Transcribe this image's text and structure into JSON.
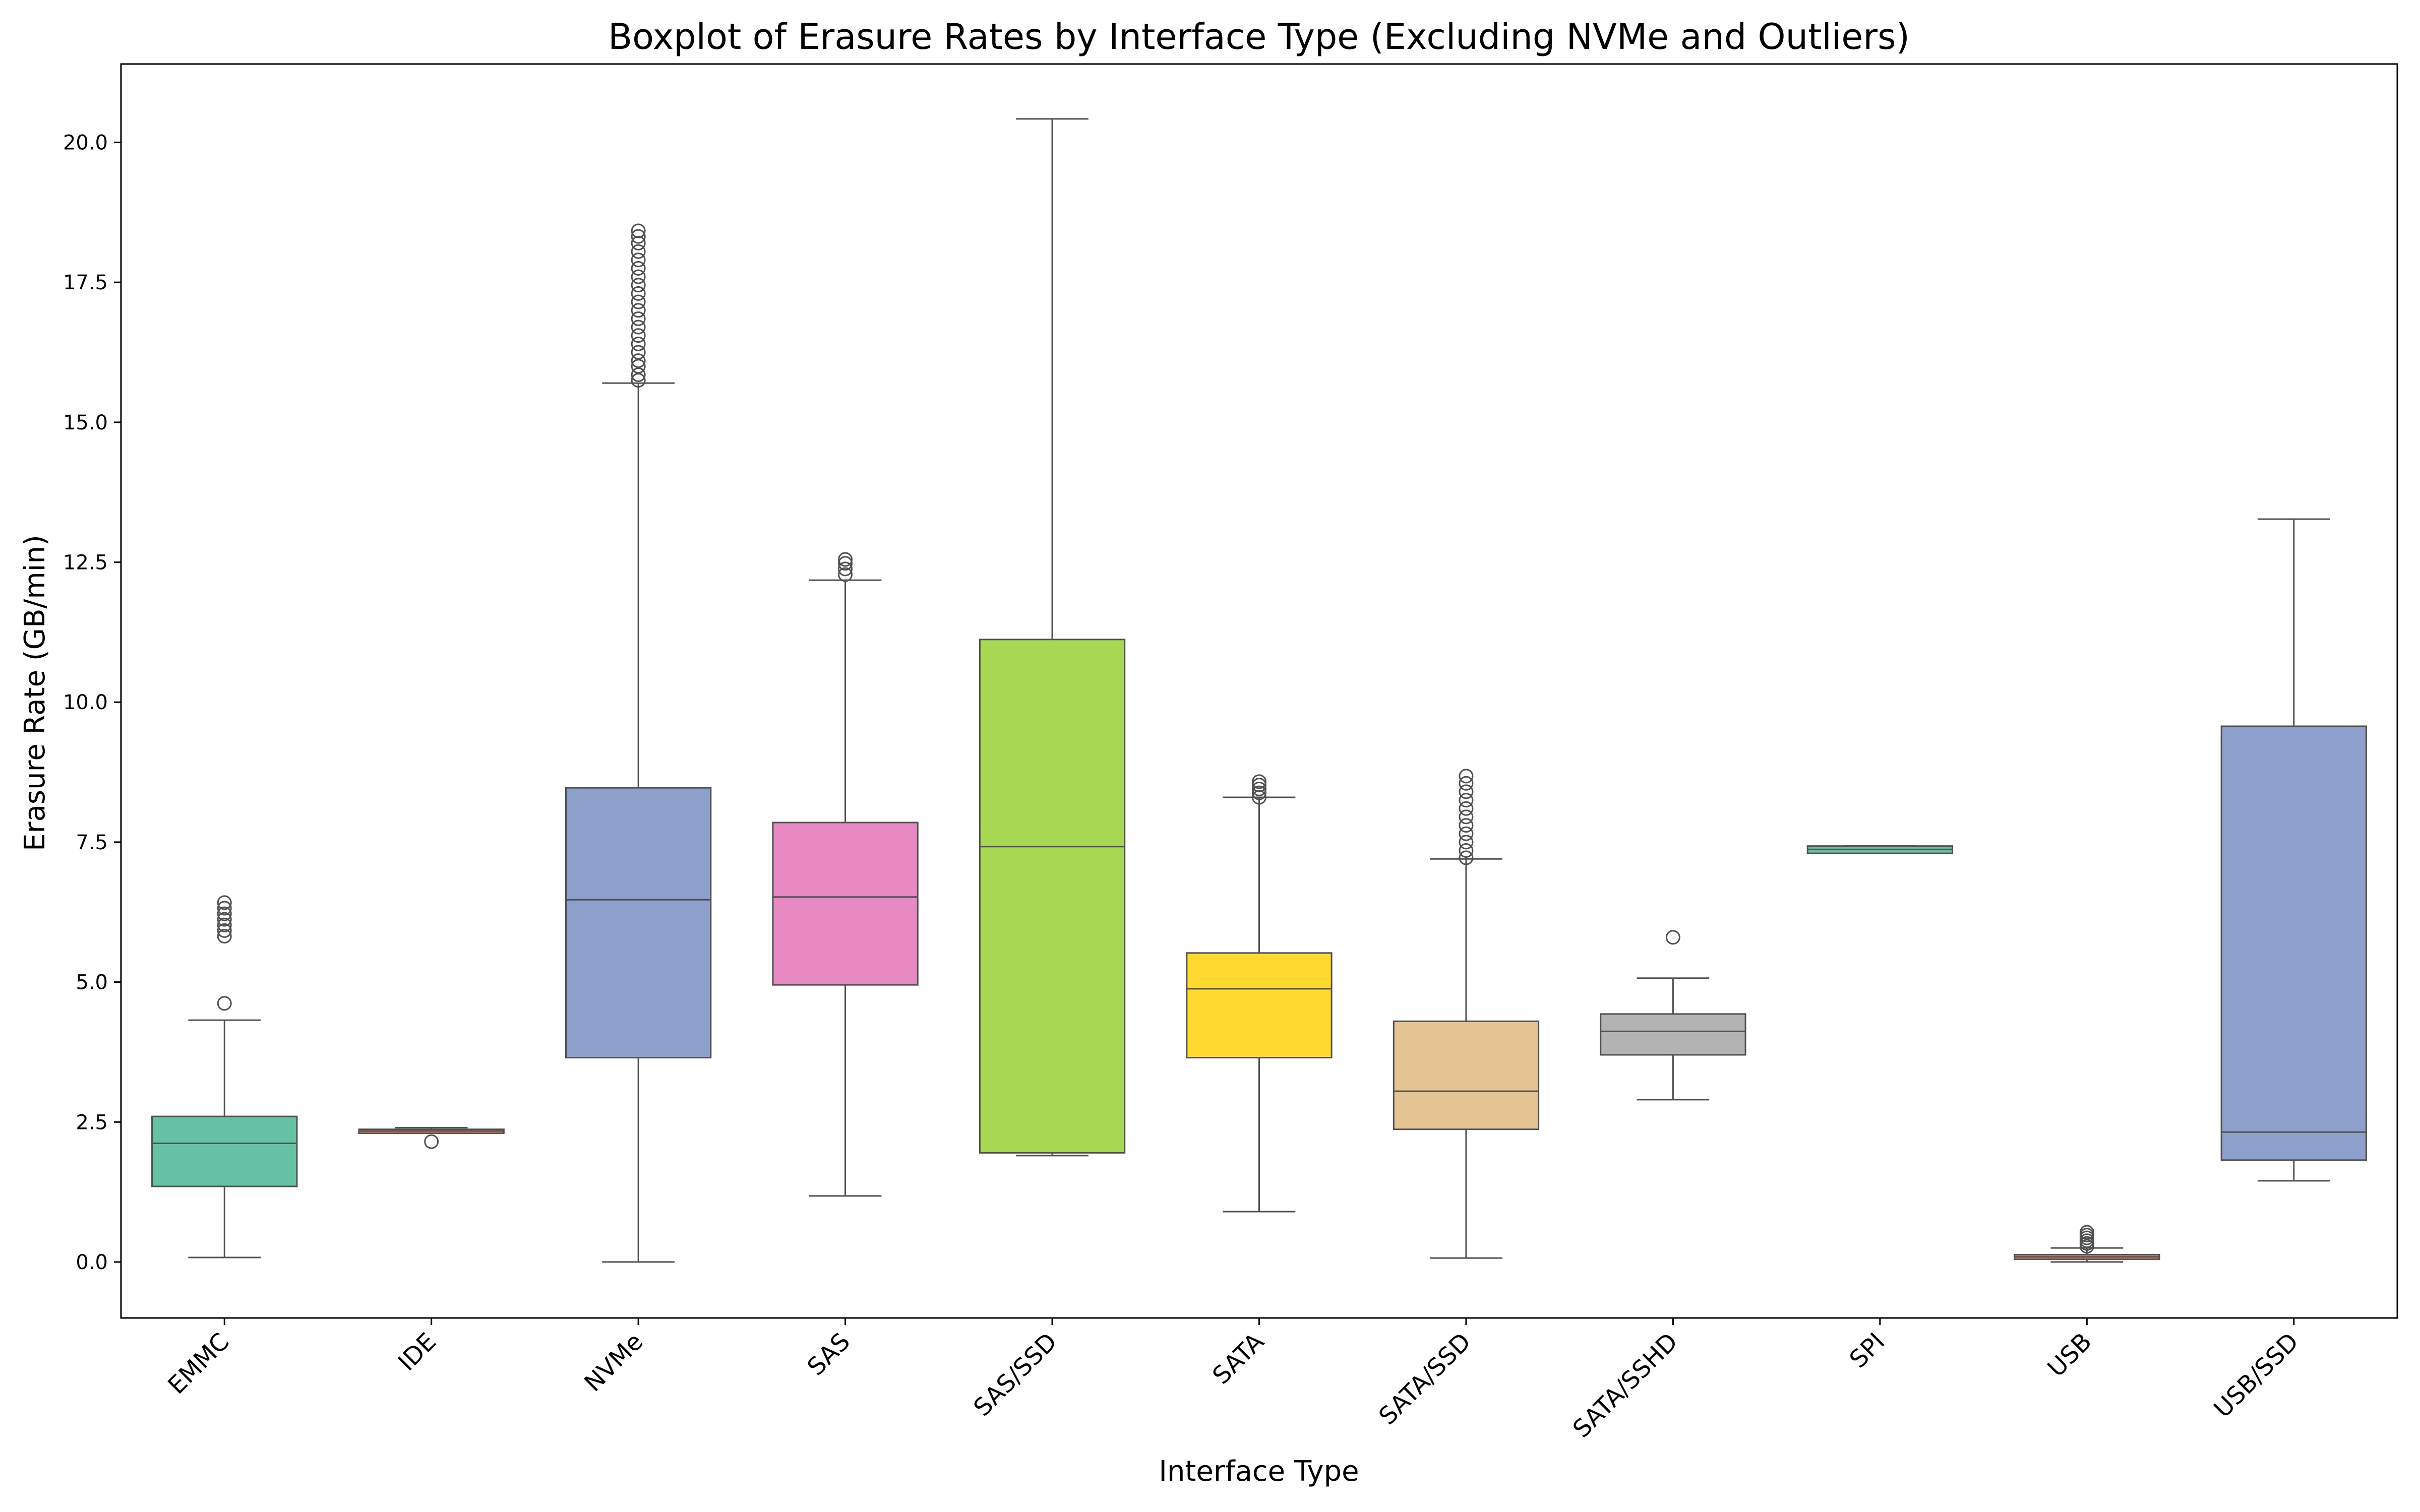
{
  "chart_data": {
    "type": "boxplot",
    "title": "Boxplot of Erasure Rates by Interface Type (Excluding NVMe and Outliers)",
    "xlabel": "Interface Type",
    "ylabel": "Erasure Rate (GB/min)",
    "ylim": [
      -1.0,
      21.4
    ],
    "yticks": [
      0.0,
      2.5,
      5.0,
      7.5,
      10.0,
      12.5,
      15.0,
      17.5,
      20.0
    ],
    "ytick_labels": [
      "0.0",
      "2.5",
      "5.0",
      "7.5",
      "10.0",
      "12.5",
      "15.0",
      "17.5",
      "20.0"
    ],
    "grid": false,
    "legend": "none",
    "categories": [
      "EMMC",
      "IDE",
      "NVMe",
      "SAS",
      "SAS/SSD",
      "SATA",
      "SATA/SSD",
      "SATA/SSHD",
      "SPI",
      "USB",
      "USB/SSD"
    ],
    "boxes": [
      {
        "category": "EMMC",
        "whisker_low": 0.08,
        "q1": 1.35,
        "median": 2.12,
        "q3": 2.6,
        "whisker_high": 4.32,
        "outliers": [
          4.62,
          5.82,
          5.92,
          6.02,
          6.12,
          6.22,
          6.32,
          6.42
        ],
        "color": "#66c2a5"
      },
      {
        "category": "IDE",
        "whisker_low": 2.3,
        "q1": 2.3,
        "median": 2.34,
        "q3": 2.37,
        "whisker_high": 2.4,
        "outliers": [
          2.15
        ],
        "color": "#fc8d62"
      },
      {
        "category": "NVMe",
        "whisker_low": 0.0,
        "q1": 3.65,
        "median": 6.47,
        "q3": 8.47,
        "whisker_high": 15.7,
        "outliers": [
          15.75,
          15.85,
          16.0,
          16.1,
          16.25,
          16.4,
          16.55,
          16.7,
          16.85,
          17.0,
          17.15,
          17.3,
          17.45,
          17.6,
          17.75,
          17.9,
          18.05,
          18.2,
          18.32,
          18.42
        ],
        "color": "#8da0cb"
      },
      {
        "category": "SAS",
        "whisker_low": 1.18,
        "q1": 4.95,
        "median": 6.52,
        "q3": 7.85,
        "whisker_high": 12.18,
        "outliers": [
          12.28,
          12.38,
          12.48,
          12.55
        ],
        "color": "#e78ac3"
      },
      {
        "category": "SAS/SSD",
        "whisker_low": 1.9,
        "q1": 1.95,
        "median": 7.42,
        "q3": 11.12,
        "whisker_high": 20.42,
        "outliers": [],
        "color": "#a6d854"
      },
      {
        "category": "SATA",
        "whisker_low": 0.9,
        "q1": 3.65,
        "median": 4.88,
        "q3": 5.52,
        "whisker_high": 8.3,
        "outliers": [
          8.3,
          8.38,
          8.45,
          8.52,
          8.58
        ],
        "color": "#ffd92f"
      },
      {
        "category": "SATA/SSD",
        "whisker_low": 0.07,
        "q1": 2.37,
        "median": 3.05,
        "q3": 4.3,
        "whisker_high": 7.2,
        "outliers": [
          7.22,
          7.35,
          7.5,
          7.65,
          7.8,
          7.95,
          8.1,
          8.25,
          8.4,
          8.55,
          8.68
        ],
        "color": "#e5c494"
      },
      {
        "category": "SATA/SSHD",
        "whisker_low": 2.9,
        "q1": 3.7,
        "median": 4.12,
        "q3": 4.43,
        "whisker_high": 5.07,
        "outliers": [
          5.8
        ],
        "color": "#b3b3b3"
      },
      {
        "category": "SPI",
        "whisker_low": 7.3,
        "q1": 7.3,
        "median": 7.37,
        "q3": 7.43,
        "whisker_high": 7.43,
        "outliers": [],
        "color": "#66c2a5"
      },
      {
        "category": "USB",
        "whisker_low": 0.0,
        "q1": 0.05,
        "median": 0.09,
        "q3": 0.13,
        "whisker_high": 0.25,
        "outliers": [
          0.28,
          0.33,
          0.38,
          0.43,
          0.48,
          0.53
        ],
        "color": "#fc8d62"
      },
      {
        "category": "USB/SSD",
        "whisker_low": 1.45,
        "q1": 1.82,
        "median": 2.32,
        "q3": 9.57,
        "whisker_high": 13.27,
        "outliers": [],
        "color": "#8da0cb"
      }
    ]
  }
}
